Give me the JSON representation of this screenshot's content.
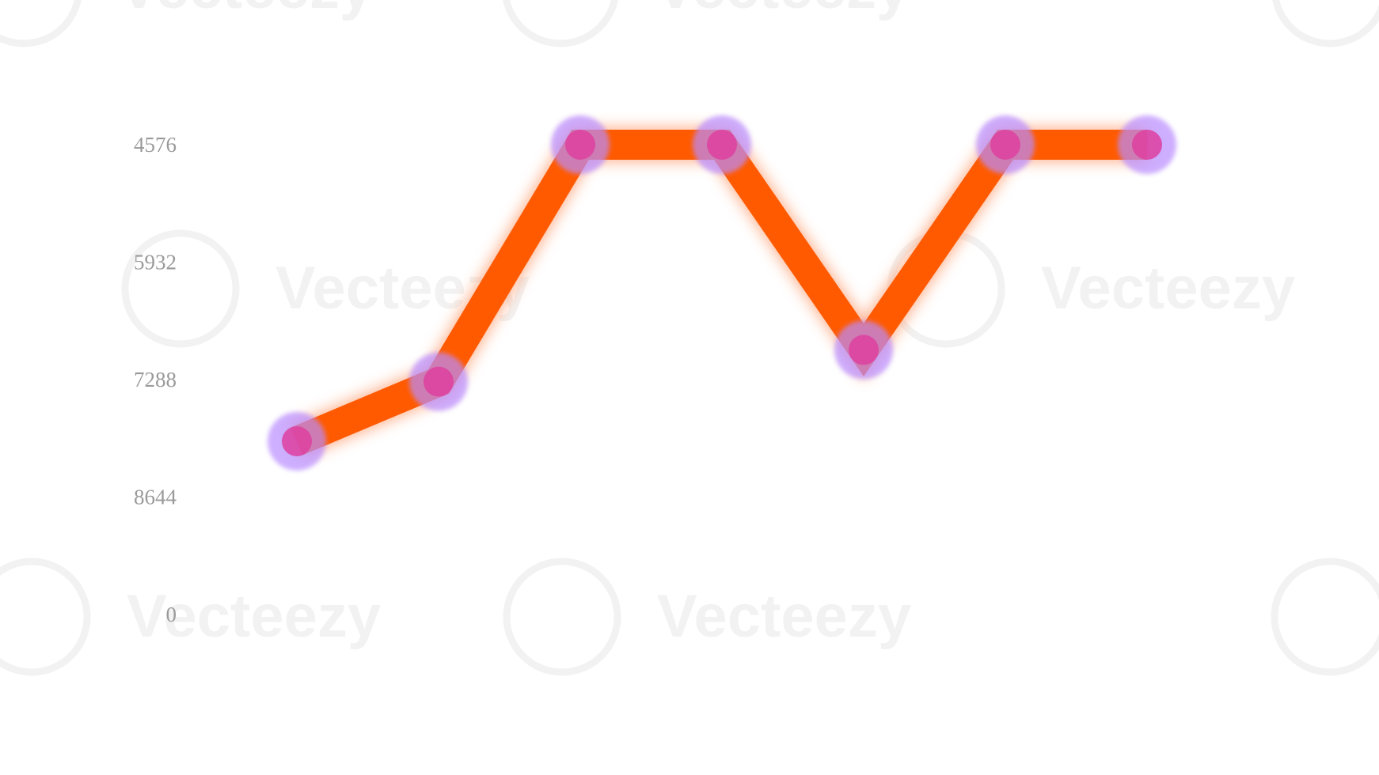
{
  "chart_data": {
    "type": "line",
    "y_ticks": [
      "4576",
      "5932",
      "7288",
      "8644",
      "0"
    ],
    "series": [
      {
        "values": [
          8000,
          7312,
          4576,
          4576,
          6945,
          4576,
          4576
        ]
      }
    ],
    "ylim": [
      10000,
      4576
    ],
    "x_tick_labels": [],
    "grid": false,
    "colors": {
      "line": "#ff5a00",
      "line_glow": "#ff9a6a",
      "marker": "#b98cff",
      "marker_overlap": "#dd3fa0"
    }
  },
  "watermark": {
    "text": "Vecteezy",
    "icon": "vecteezy-logo-icon"
  }
}
